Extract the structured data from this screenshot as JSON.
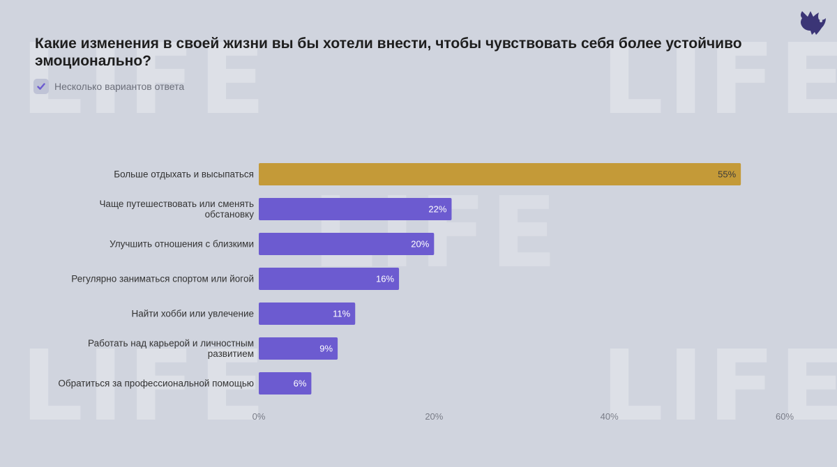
{
  "header": {
    "title": "Какие изменения в своей жизни вы бы хотели внести, чтобы чувствовать себя более устойчиво эмоционально?",
    "subtitle": "Несколько вариантов ответа",
    "logo_icon": "bird-logo-icon",
    "watermark": "LIFE"
  },
  "colors": {
    "highlight": "#c49a38",
    "bar": "#6c5bd0",
    "background": "#d0d4de"
  },
  "chart_data": {
    "type": "bar",
    "orientation": "horizontal",
    "title": "Какие изменения в своей жизни вы бы хотели внести, чтобы чувствовать себя более устойчиво эмоционально?",
    "subtitle": "Несколько вариантов ответа",
    "categories": [
      [
        "Больше отдыхать и высыпаться"
      ],
      [
        "Чаще путешествовать или сменять",
        "обстановку"
      ],
      [
        "Улучшить отношения с близкими"
      ],
      [
        "Регулярно заниматься спортом или йогой"
      ],
      [
        "Найти хобби или увлечение"
      ],
      [
        "Работать над карьерой и личностным",
        "развитием"
      ],
      [
        "Обратиться за профессиональной помощью"
      ]
    ],
    "values": [
      55,
      22,
      20,
      16,
      11,
      9,
      6
    ],
    "value_labels": [
      "55%",
      "22%",
      "20%",
      "16%",
      "11%",
      "9%",
      "6%"
    ],
    "highlighted_index": 0,
    "xlim": [
      0,
      60
    ],
    "x_ticks": [
      0,
      20,
      40,
      60
    ],
    "x_tick_labels": [
      "0%",
      "20%",
      "40%",
      "60%"
    ],
    "grid": false,
    "legend": "none"
  }
}
